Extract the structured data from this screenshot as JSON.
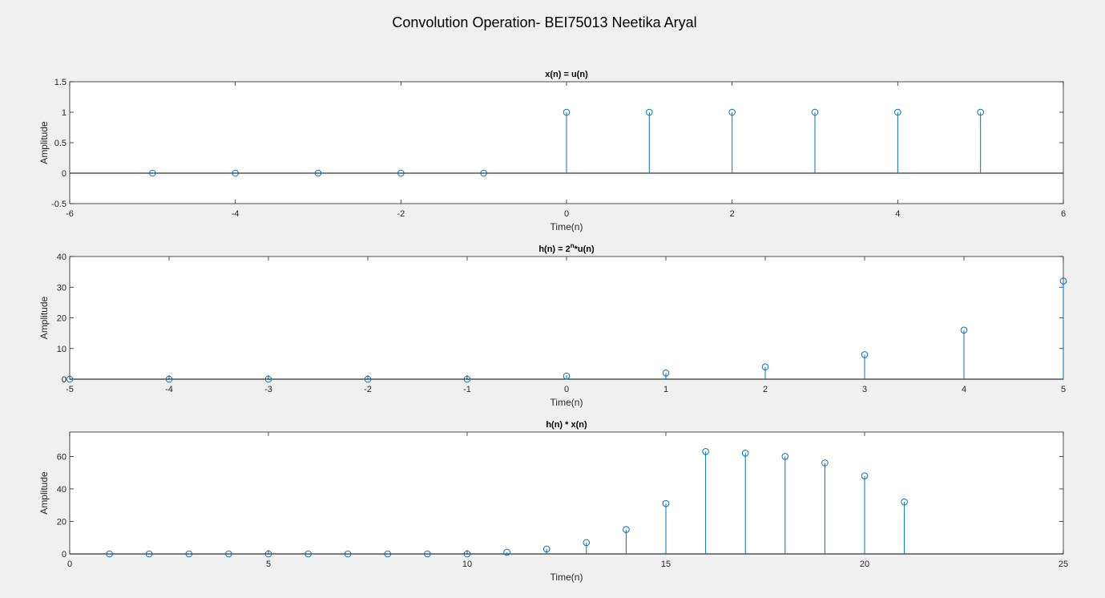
{
  "figure": {
    "title": "Convolution Operation- BEI75013 Neetika Aryal",
    "colors": {
      "stem": "#0072bd",
      "background": "#f0f0f0",
      "axes_bg": "#ffffff",
      "baseline": "#000000"
    }
  },
  "chart_data": [
    {
      "type": "stem",
      "title": "x(n) = u(n)",
      "xlabel": "Time(n)",
      "ylabel": "Amplitude",
      "xlim": [
        -6,
        6
      ],
      "ylim": [
        -0.5,
        1.5
      ],
      "xticks": [
        "-6",
        "-4",
        "-2",
        "0",
        "2",
        "4",
        "6"
      ],
      "yticks": [
        "-0.5",
        "0",
        "0.5",
        "1",
        "1.5"
      ],
      "x": [
        -5,
        -4,
        -3,
        -2,
        -1,
        0,
        1,
        2,
        3,
        4,
        5
      ],
      "y": [
        0,
        0,
        0,
        0,
        0,
        1,
        1,
        1,
        1,
        1,
        1
      ]
    },
    {
      "type": "stem",
      "title_base": "h(n) = 2",
      "title_sup": "n",
      "title_rest": "*u(n)",
      "xlabel": "Time(n)",
      "ylabel": "Amplitude",
      "xlim": [
        -5,
        5
      ],
      "ylim": [
        0,
        40
      ],
      "xticks": [
        "-5",
        "-4",
        "-3",
        "-2",
        "-1",
        "0",
        "1",
        "2",
        "3",
        "4",
        "5"
      ],
      "yticks": [
        "0",
        "10",
        "20",
        "30",
        "40"
      ],
      "x": [
        -5,
        -4,
        -3,
        -2,
        -1,
        0,
        1,
        2,
        3,
        4,
        5
      ],
      "y": [
        0,
        0,
        0,
        0,
        0,
        1,
        2,
        4,
        8,
        16,
        32
      ]
    },
    {
      "type": "stem",
      "title": "h(n) * x(n)",
      "xlabel": "Time(n)",
      "ylabel": "Amplitude",
      "xlim": [
        0,
        25
      ],
      "ylim": [
        0,
        75
      ],
      "xticks": [
        "0",
        "5",
        "10",
        "15",
        "20",
        "25"
      ],
      "yticks": [
        "0",
        "20",
        "40",
        "60"
      ],
      "x": [
        1,
        2,
        3,
        4,
        5,
        6,
        7,
        8,
        9,
        10,
        11,
        12,
        13,
        14,
        15,
        16,
        17,
        18,
        19,
        20,
        21
      ],
      "y": [
        0,
        0,
        0,
        0,
        0,
        0,
        0,
        0,
        0,
        0,
        1,
        3,
        7,
        15,
        31,
        63,
        62,
        60,
        56,
        48,
        32
      ]
    }
  ]
}
